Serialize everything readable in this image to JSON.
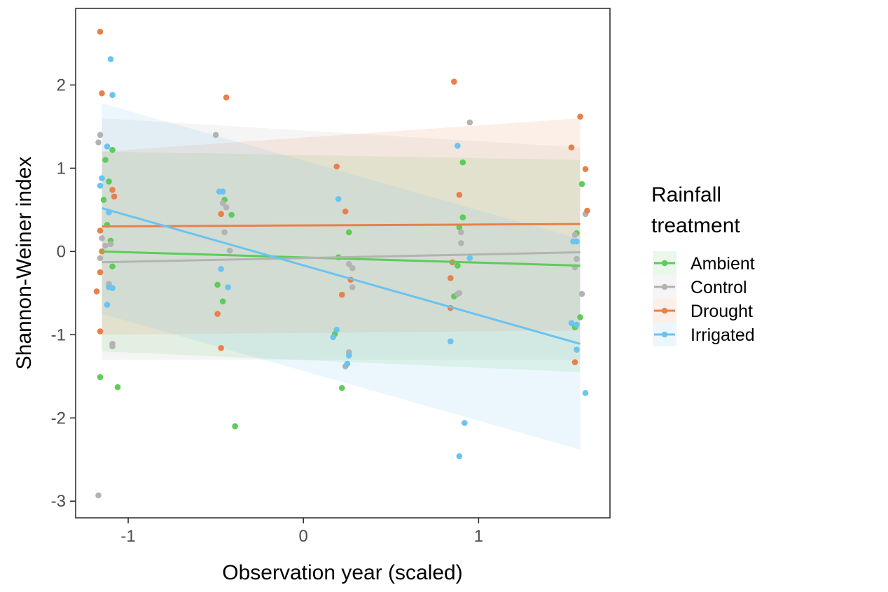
{
  "chart_data": {
    "type": "scatter",
    "title": "",
    "xlabel": "Observation year (scaled)",
    "ylabel": "Shannon-Weiner index",
    "xlim": [
      -1.3,
      1.75
    ],
    "ylim": [
      -3.2,
      2.92
    ],
    "x_ticks": [
      -1,
      0,
      1
    ],
    "x_tick_labels": [
      "-1",
      "0",
      "1"
    ],
    "y_ticks": [
      -3,
      -2,
      -1,
      0,
      1,
      2
    ],
    "y_tick_labels": [
      "-3",
      "-2",
      "-1",
      "0",
      "1",
      "2"
    ],
    "grid": false,
    "legend": {
      "title_lines": [
        "Rainfall",
        "treatment"
      ],
      "placement": "right"
    },
    "series": [
      {
        "name": "Ambient",
        "color": "#5ecb5a",
        "fit": {
          "x": [
            -1.15,
            1.58
          ],
          "y": [
            0.0,
            -0.17
          ]
        },
        "band": {
          "x": [
            -1.15,
            1.58
          ],
          "upper": [
            1.2,
            1.1
          ],
          "lower": [
            -1.2,
            -1.45
          ]
        },
        "points": [
          [
            -1.14,
            0.62
          ],
          [
            -1.13,
            1.1
          ],
          [
            -1.12,
            0.32
          ],
          [
            -1.11,
            0.84
          ],
          [
            -1.1,
            0.13
          ],
          [
            -1.09,
            -0.18
          ],
          [
            -1.09,
            1.22
          ],
          [
            -1.16,
            -1.51
          ],
          [
            -1.06,
            -1.63
          ],
          [
            -0.45,
            0.62
          ],
          [
            -0.41,
            0.44
          ],
          [
            -0.46,
            -0.6
          ],
          [
            -0.49,
            -0.4
          ],
          [
            -0.39,
            -2.1
          ],
          [
            0.22,
            -1.64
          ],
          [
            0.2,
            -0.07
          ],
          [
            0.18,
            -0.99
          ],
          [
            0.26,
            0.23
          ],
          [
            0.91,
            1.07
          ],
          [
            0.89,
            0.29
          ],
          [
            0.91,
            0.41
          ],
          [
            0.88,
            -0.17
          ],
          [
            0.86,
            -0.54
          ],
          [
            1.59,
            0.81
          ],
          [
            1.56,
            0.22
          ],
          [
            1.58,
            -0.79
          ],
          [
            1.55,
            -0.91
          ]
        ]
      },
      {
        "name": "Control",
        "color": "#b3b3b3",
        "fit": {
          "x": [
            -1.15,
            1.58
          ],
          "y": [
            -0.13,
            -0.01
          ]
        },
        "band": {
          "x": [
            -1.15,
            1.58
          ],
          "upper": [
            1.6,
            1.25
          ],
          "lower": [
            -1.3,
            -1.3
          ]
        },
        "points": [
          [
            -1.16,
            1.4
          ],
          [
            -1.17,
            1.31
          ],
          [
            -1.15,
            0.16
          ],
          [
            -1.13,
            0.07
          ],
          [
            -1.11,
            -0.39
          ],
          [
            -1.1,
            0.09
          ],
          [
            -1.09,
            -1.11
          ],
          [
            -1.09,
            -1.14
          ],
          [
            -1.16,
            -0.08
          ],
          [
            -1.17,
            -2.93
          ],
          [
            -0.5,
            1.4
          ],
          [
            -0.46,
            0.58
          ],
          [
            -0.44,
            0.53
          ],
          [
            -0.45,
            0.23
          ],
          [
            -0.42,
            0.01
          ],
          [
            0.28,
            -0.2
          ],
          [
            0.26,
            -0.15
          ],
          [
            0.28,
            -0.43
          ],
          [
            0.26,
            -1.21
          ],
          [
            0.24,
            -1.38
          ],
          [
            0.95,
            1.55
          ],
          [
            0.9,
            0.23
          ],
          [
            0.9,
            0.1
          ],
          [
            0.88,
            -0.51
          ],
          [
            0.89,
            -0.5
          ],
          [
            1.55,
            0.2
          ],
          [
            1.61,
            0.45
          ],
          [
            1.56,
            -0.09
          ],
          [
            1.59,
            -0.51
          ],
          [
            1.55,
            -0.19
          ]
        ]
      },
      {
        "name": "Drought",
        "color": "#e8804a",
        "fit": {
          "x": [
            -1.15,
            1.58
          ],
          "y": [
            0.3,
            0.33
          ]
        },
        "band": {
          "x": [
            -1.15,
            1.58
          ],
          "upper": [
            1.2,
            1.6
          ],
          "lower": [
            -1.0,
            -0.95
          ]
        },
        "points": [
          [
            -1.16,
            2.64
          ],
          [
            -1.15,
            1.9
          ],
          [
            -1.08,
            0.66
          ],
          [
            -1.09,
            0.74
          ],
          [
            -1.16,
            0.25
          ],
          [
            -1.15,
            0.0
          ],
          [
            -1.18,
            -0.48
          ],
          [
            -1.16,
            -0.25
          ],
          [
            -1.16,
            -0.96
          ],
          [
            -0.44,
            1.85
          ],
          [
            -0.47,
            0.45
          ],
          [
            -0.49,
            -0.75
          ],
          [
            -0.47,
            -1.16
          ],
          [
            0.19,
            1.02
          ],
          [
            0.24,
            0.48
          ],
          [
            0.22,
            -0.52
          ],
          [
            0.27,
            -0.34
          ],
          [
            0.86,
            2.04
          ],
          [
            0.89,
            0.68
          ],
          [
            0.85,
            -0.13
          ],
          [
            0.84,
            -0.32
          ],
          [
            0.84,
            -0.68
          ],
          [
            1.58,
            1.62
          ],
          [
            1.53,
            1.25
          ],
          [
            1.61,
            0.99
          ],
          [
            1.62,
            0.49
          ],
          [
            1.55,
            -1.33
          ]
        ]
      },
      {
        "name": "Irrigated",
        "color": "#6bc3f0",
        "fit": {
          "x": [
            -1.15,
            1.58
          ],
          "y": [
            0.52,
            -1.11
          ]
        },
        "band": {
          "x": [
            -1.15,
            1.58
          ],
          "upper": [
            1.78,
            0.15
          ],
          "lower": [
            -0.75,
            -2.38
          ]
        },
        "points": [
          [
            -1.1,
            2.31
          ],
          [
            -1.09,
            1.88
          ],
          [
            -1.12,
            1.26
          ],
          [
            -1.15,
            0.88
          ],
          [
            -1.16,
            0.79
          ],
          [
            -1.11,
            0.47
          ],
          [
            -1.11,
            -0.43
          ],
          [
            -1.09,
            -0.44
          ],
          [
            -1.12,
            -0.64
          ],
          [
            -0.48,
            0.72
          ],
          [
            -0.46,
            0.72
          ],
          [
            -0.47,
            -0.21
          ],
          [
            -0.43,
            -0.43
          ],
          [
            0.2,
            0.63
          ],
          [
            0.19,
            -0.94
          ],
          [
            0.17,
            -1.03
          ],
          [
            0.26,
            -1.25
          ],
          [
            0.25,
            -1.35
          ],
          [
            0.88,
            1.27
          ],
          [
            0.95,
            -0.08
          ],
          [
            0.84,
            -1.08
          ],
          [
            0.92,
            -2.06
          ],
          [
            0.89,
            -2.46
          ],
          [
            1.54,
            0.12
          ],
          [
            1.56,
            0.12
          ],
          [
            1.53,
            -0.86
          ],
          [
            1.56,
            -0.88
          ],
          [
            1.56,
            -1.18
          ],
          [
            1.61,
            -1.7
          ]
        ]
      }
    ]
  }
}
